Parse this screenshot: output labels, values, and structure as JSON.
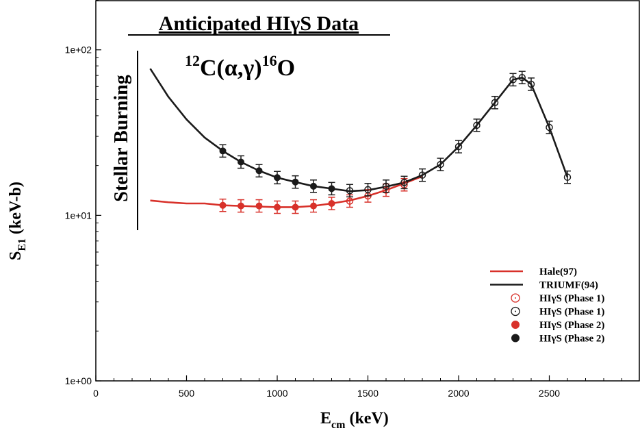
{
  "chart_data": {
    "type": "line",
    "title": "Anticipated HIγS Data",
    "subtitle": {
      "mass1": "12",
      "reaction": "C(α,γ)",
      "mass2": "16",
      "product": "O"
    },
    "annotation": "Stellar Burning",
    "xlabel": {
      "main": "E",
      "sub": "cm",
      "unit": " (keV)"
    },
    "ylabel": {
      "main": "S",
      "sub": "E1",
      "unit": " (keV-b)"
    },
    "xlim": [
      0,
      3000
    ],
    "ylim": [
      1,
      200
    ],
    "yscale": "log",
    "x_ticks": [
      0,
      500,
      1000,
      1500,
      2000,
      2500
    ],
    "x_tick_labels": [
      "0",
      "500",
      "1000",
      "1500",
      "2000",
      "2500"
    ],
    "y_ticks": [
      1,
      10,
      100
    ],
    "y_tick_labels": [
      "1e+00",
      "1e+01",
      "1e+02"
    ],
    "legend_position": "bottom-right",
    "series": [
      {
        "name": "Hale(97)",
        "kind": "line",
        "color": "#d8312a",
        "x": [
          300,
          400,
          500,
          600,
          700,
          800,
          900,
          1000,
          1100,
          1200,
          1300,
          1400,
          1500,
          1600,
          1700,
          1800
        ],
        "y": [
          12.3,
          12.0,
          11.8,
          11.8,
          11.5,
          11.4,
          11.3,
          11.2,
          11.2,
          11.4,
          11.8,
          12.3,
          13.1,
          14.2,
          15.6,
          17.2
        ]
      },
      {
        "name": "TRIUMF(94)",
        "kind": "line",
        "color": "#1a1a1a",
        "x": [
          300,
          400,
          500,
          600,
          700,
          800,
          900,
          1000,
          1100,
          1200,
          1300,
          1400,
          1500,
          1600,
          1700,
          1800,
          1900,
          2000,
          2100,
          2200,
          2300,
          2350,
          2400,
          2500,
          2600
        ],
        "y": [
          77,
          52,
          38,
          29.5,
          24.5,
          21.0,
          18.6,
          16.9,
          15.9,
          15.0,
          14.5,
          14.0,
          14.2,
          14.9,
          15.8,
          17.5,
          20.3,
          26,
          35,
          48,
          66,
          68,
          62,
          34,
          17
        ]
      },
      {
        "name": "HIγS (Phase 1)",
        "kind": "open-markers",
        "color": "#d8312a",
        "x": [
          1400,
          1500,
          1600,
          1700
        ],
        "y": [
          12.2,
          13.1,
          14.2,
          15.3
        ]
      },
      {
        "name": "HIγS (Phase 1)",
        "kind": "open-markers",
        "color": "#1a1a1a",
        "x": [
          1400,
          1500,
          1600,
          1700,
          1800,
          1900,
          2000,
          2100,
          2200,
          2300,
          2350,
          2400,
          2500,
          2600
        ],
        "y": [
          14.1,
          14.3,
          15.0,
          15.8,
          17.5,
          20.3,
          26,
          35,
          48,
          66,
          68,
          62,
          34,
          17
        ]
      },
      {
        "name": "HIγS (Phase 2)",
        "kind": "filled-markers",
        "color": "#d8312a",
        "x": [
          700,
          800,
          900,
          1000,
          1100,
          1200,
          1300
        ],
        "y": [
          11.5,
          11.4,
          11.4,
          11.2,
          11.2,
          11.4,
          11.8
        ]
      },
      {
        "name": "HIγS (Phase 2)",
        "kind": "filled-markers",
        "color": "#1a1a1a",
        "x": [
          700,
          800,
          900,
          1000,
          1100,
          1200,
          1300
        ],
        "y": [
          24.5,
          21.0,
          18.6,
          16.9,
          15.9,
          15.0,
          14.5
        ]
      }
    ]
  }
}
